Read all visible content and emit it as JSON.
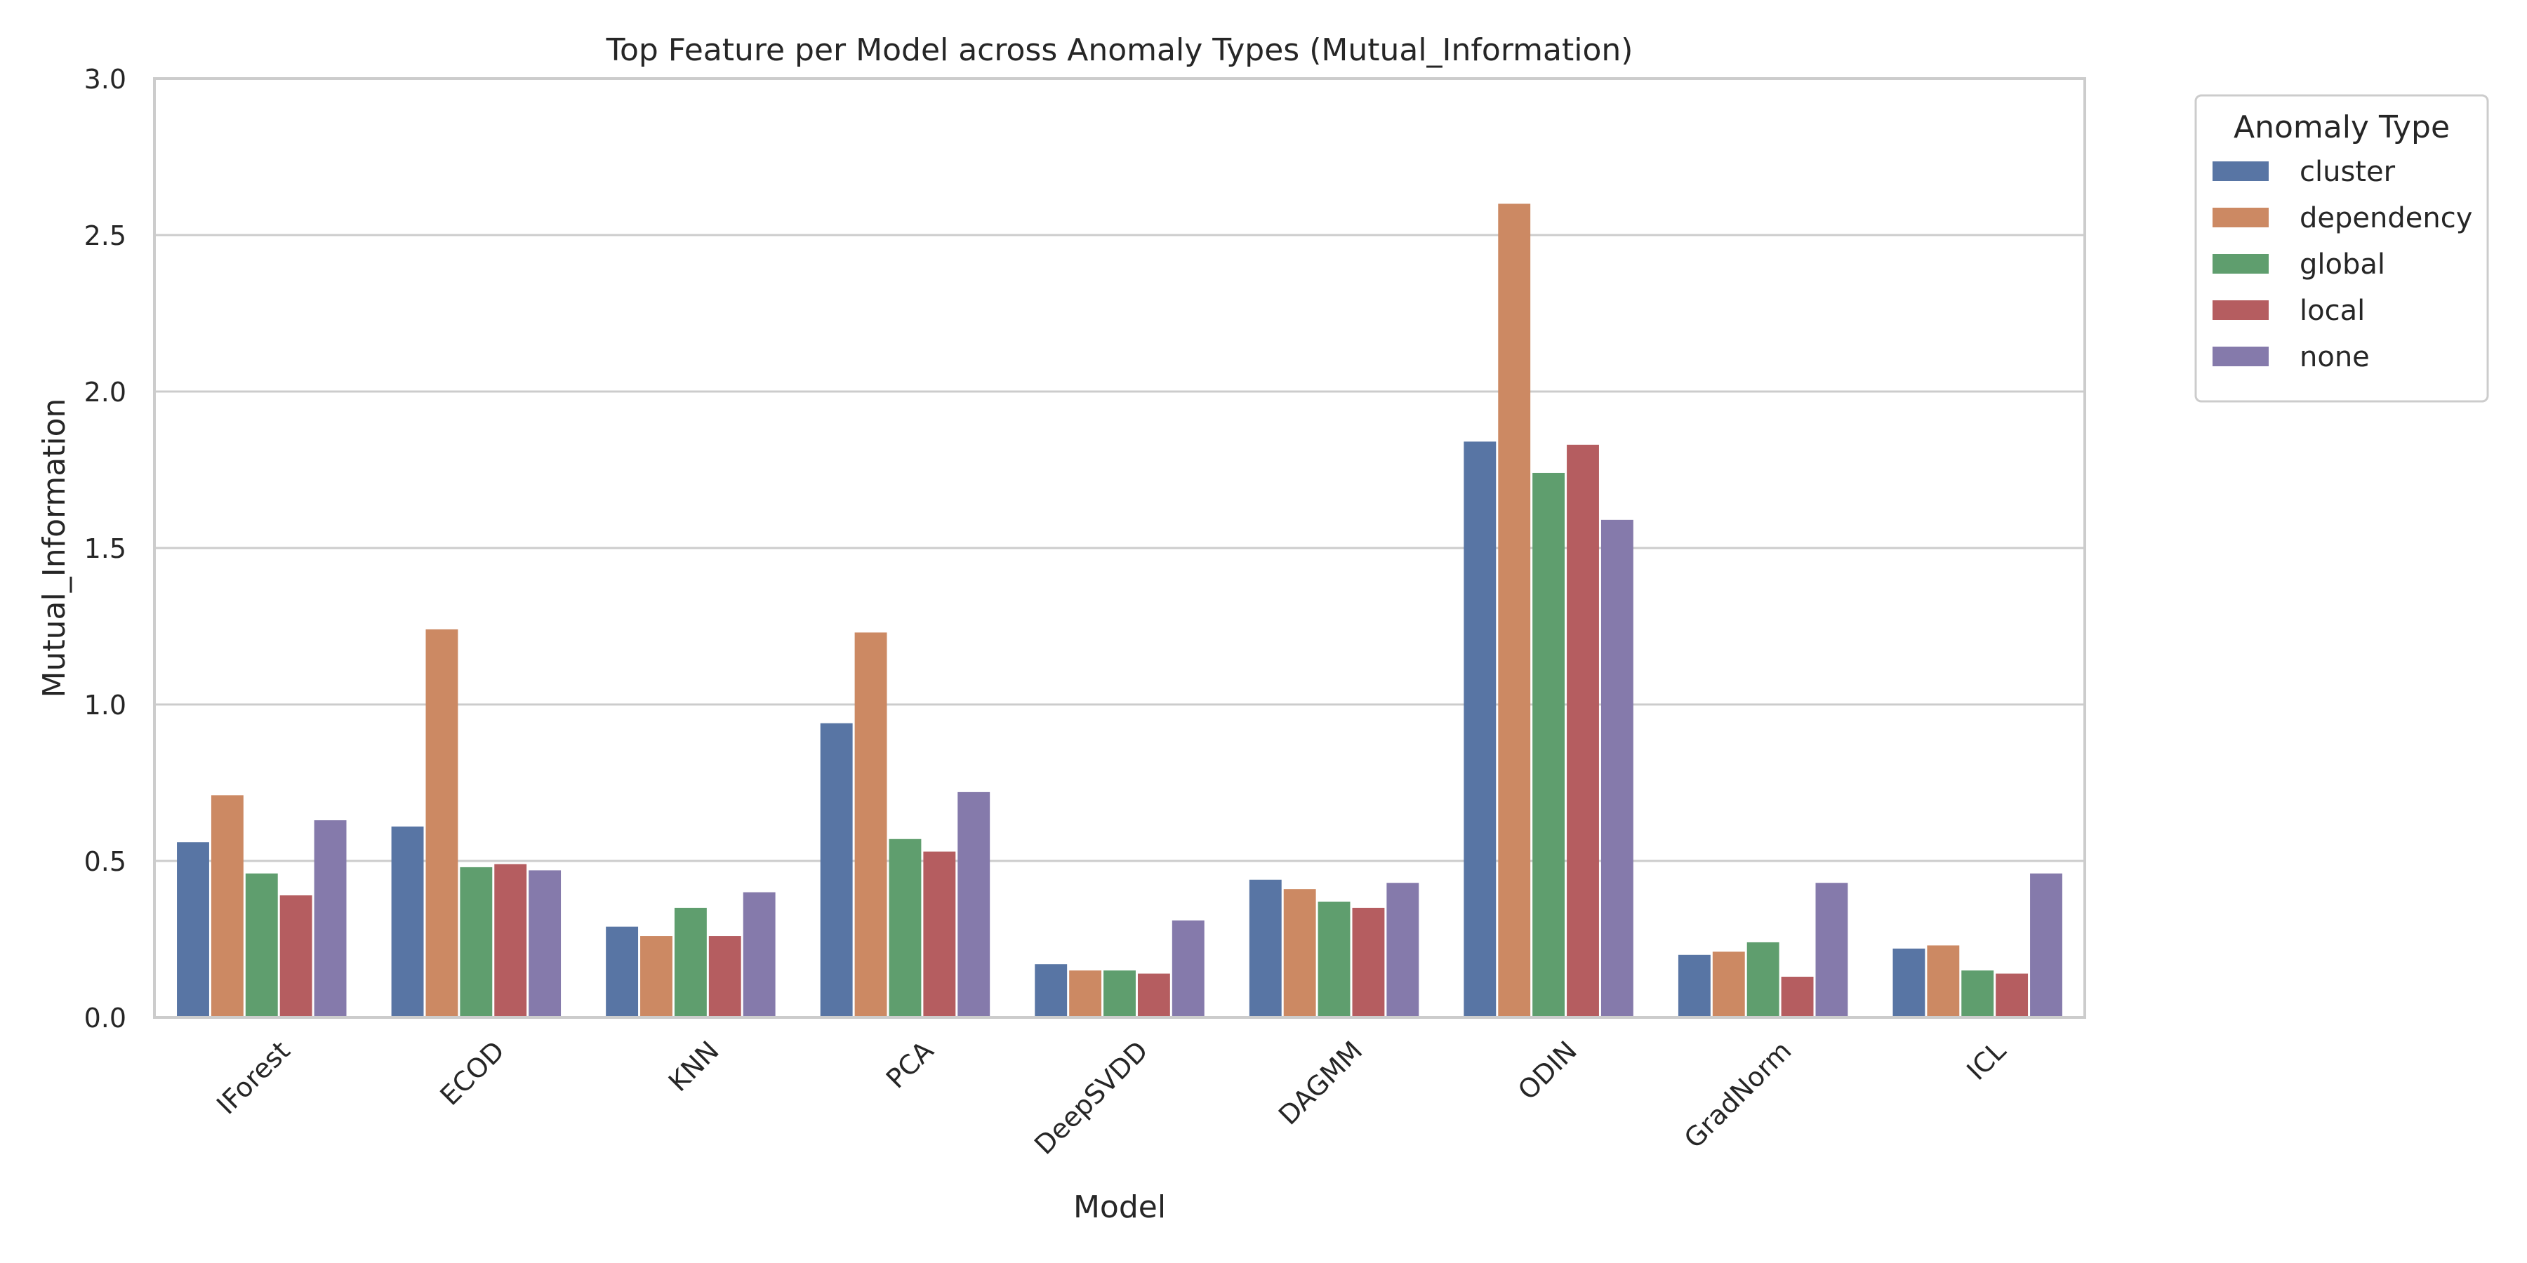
{
  "chart_data": {
    "type": "bar",
    "title": "Top Feature per Model across Anomaly Types (Mutual_Information)",
    "xlabel": "Model",
    "ylabel": "Mutual_Information",
    "ylim": [
      0,
      3.0
    ],
    "yticks": [
      0.0,
      0.5,
      1.0,
      1.5,
      2.0,
      2.5,
      3.0
    ],
    "ytick_labels": [
      "0.0",
      "0.5",
      "1.0",
      "1.5",
      "2.0",
      "2.5",
      "3.0"
    ],
    "grid": "horizontal",
    "legend": {
      "title": "Anomaly Type",
      "placement": "outside-top-right"
    },
    "categories": [
      "IForest",
      "ECOD",
      "KNN",
      "PCA",
      "DeepSVDD",
      "DAGMM",
      "ODIN",
      "GradNorm",
      "ICL"
    ],
    "series": [
      {
        "name": "cluster",
        "color": "#5875a4",
        "values": [
          0.56,
          0.61,
          0.29,
          0.94,
          0.17,
          0.44,
          1.84,
          0.2,
          0.22
        ]
      },
      {
        "name": "dependency",
        "color": "#cc8963",
        "values": [
          0.71,
          1.24,
          0.26,
          1.23,
          0.15,
          0.41,
          2.6,
          0.21,
          0.23
        ]
      },
      {
        "name": "global",
        "color": "#5f9e6e",
        "values": [
          0.46,
          0.48,
          0.35,
          0.57,
          0.15,
          0.37,
          1.74,
          0.24,
          0.15
        ]
      },
      {
        "name": "local",
        "color": "#b55d60",
        "values": [
          0.39,
          0.49,
          0.26,
          0.53,
          0.14,
          0.35,
          1.83,
          0.13,
          0.14
        ]
      },
      {
        "name": "none",
        "color": "#857aab",
        "values": [
          0.63,
          0.47,
          0.4,
          0.72,
          0.31,
          0.43,
          1.59,
          0.43,
          0.46
        ]
      }
    ]
  }
}
